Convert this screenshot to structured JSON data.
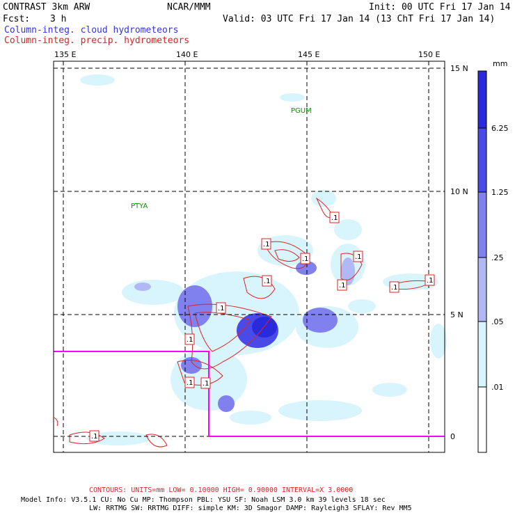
{
  "header": {
    "model": "CONTRAST  3km ARW",
    "org": "NCAR/MMM",
    "init": "Init: 00 UTC Fri 17 Jan 14",
    "fcst_label": "Fcst:",
    "fcst_value": "3 h",
    "valid": "Valid: 03 UTC Fri 17 Jan 14 (13 ChT Fri 17 Jan 14)",
    "line_blue": "Column-integ. cloud hydrometeors",
    "line_red": "Column-integ. precip. hydrometeors"
  },
  "map": {
    "lon_labels": [
      "135 E",
      "140 E",
      "145 E",
      "150 E"
    ],
    "lat_labels": [
      "15 N",
      "10 N",
      "5 N",
      "0"
    ],
    "places": [
      "PGUM",
      "PTYA"
    ],
    "contour_labels": [
      ".1",
      ".1",
      ".1",
      ".1",
      ".1",
      ".1",
      ".1",
      ".1",
      ".1",
      ".1",
      ".1",
      ".1",
      ".1"
    ],
    "colors": {
      "grid": "#000000",
      "contour": "#dd2222",
      "domain_box": "#ff00ff",
      "place": "#118811"
    }
  },
  "colorbar": {
    "unit": "mm",
    "labels": [
      "6.25",
      "1.25",
      ".25",
      ".05",
      ".01"
    ],
    "colors": [
      "#2a2add",
      "#4a4ae8",
      "#8080ee",
      "#b0b8f6",
      "#d8f4fc",
      "#ffffff"
    ]
  },
  "footer": {
    "contours": "CONTOURS:  UNITS=mm  LOW= 0.10000      HIGH= 0.90000      INTERVAL=X  3.0000",
    "model_info_1": "Model Info: V3.5.1    CU: No Cu     MP: Thompson     PBL: YSU      SF: Noah LSM     3.0 km  39 levels   18 sec",
    "model_info_2": "LW: RRTMG     SW: RRTMG   DIFF: simple KM: 3D Smagor DAMP: Rayleigh3  SFLAY: Rev MM5"
  }
}
